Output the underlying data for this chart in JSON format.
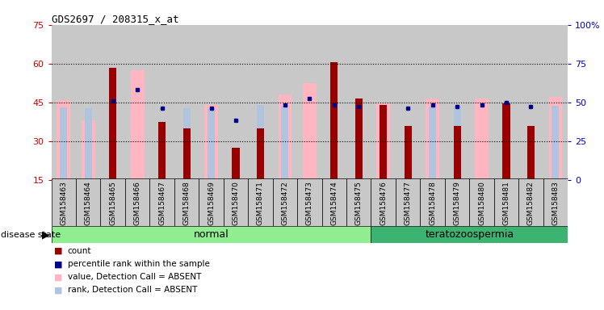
{
  "title": "GDS2697 / 208315_x_at",
  "samples": [
    "GSM158463",
    "GSM158464",
    "GSM158465",
    "GSM158466",
    "GSM158467",
    "GSM158468",
    "GSM158469",
    "GSM158470",
    "GSM158471",
    "GSM158472",
    "GSM158473",
    "GSM158474",
    "GSM158475",
    "GSM158476",
    "GSM158477",
    "GSM158478",
    "GSM158479",
    "GSM158480",
    "GSM158481",
    "GSM158482",
    "GSM158483"
  ],
  "count": [
    null,
    null,
    58.5,
    null,
    37.5,
    35.0,
    null,
    27.5,
    35.0,
    null,
    null,
    60.5,
    46.5,
    44.0,
    36.0,
    null,
    36.0,
    null,
    44.5,
    36.0,
    null
  ],
  "percentile_rank": [
    null,
    null,
    51.0,
    58.0,
    46.0,
    null,
    46.0,
    38.5,
    null,
    48.5,
    52.5,
    48.5,
    47.5,
    null,
    46.0,
    48.5,
    47.5,
    48.5,
    50.0,
    47.0,
    null
  ],
  "value_absent": [
    46.0,
    38.0,
    null,
    57.5,
    null,
    null,
    44.0,
    null,
    null,
    48.0,
    52.5,
    null,
    null,
    44.5,
    null,
    46.5,
    null,
    46.5,
    null,
    null,
    47.0
  ],
  "rank_absent": [
    46.5,
    46.0,
    57.5,
    null,
    null,
    46.0,
    46.0,
    null,
    48.5,
    48.0,
    null,
    null,
    null,
    null,
    null,
    47.5,
    47.5,
    null,
    47.5,
    null,
    48.0
  ],
  "groups": [
    {
      "label": "normal",
      "start": 0,
      "end": 13,
      "color": "#90EE90"
    },
    {
      "label": "teratozoospermia",
      "start": 13,
      "end": 21,
      "color": "#3CB371"
    }
  ],
  "ylim_left": [
    15,
    75
  ],
  "ylim_right": [
    0,
    100
  ],
  "left_ticks": [
    15,
    30,
    45,
    60,
    75
  ],
  "right_ticks": [
    0,
    25,
    50,
    75,
    100
  ],
  "count_color": "#990000",
  "percentile_color": "#00008B",
  "value_absent_color": "#FFB6C1",
  "rank_absent_color": "#B0C4DE",
  "bg_color": "#ffffff",
  "ylabel_left_color": "#cc0000",
  "ylabel_right_color": "#0000cc",
  "col_bg_color": "#c8c8c8",
  "grid_color": "#000000"
}
